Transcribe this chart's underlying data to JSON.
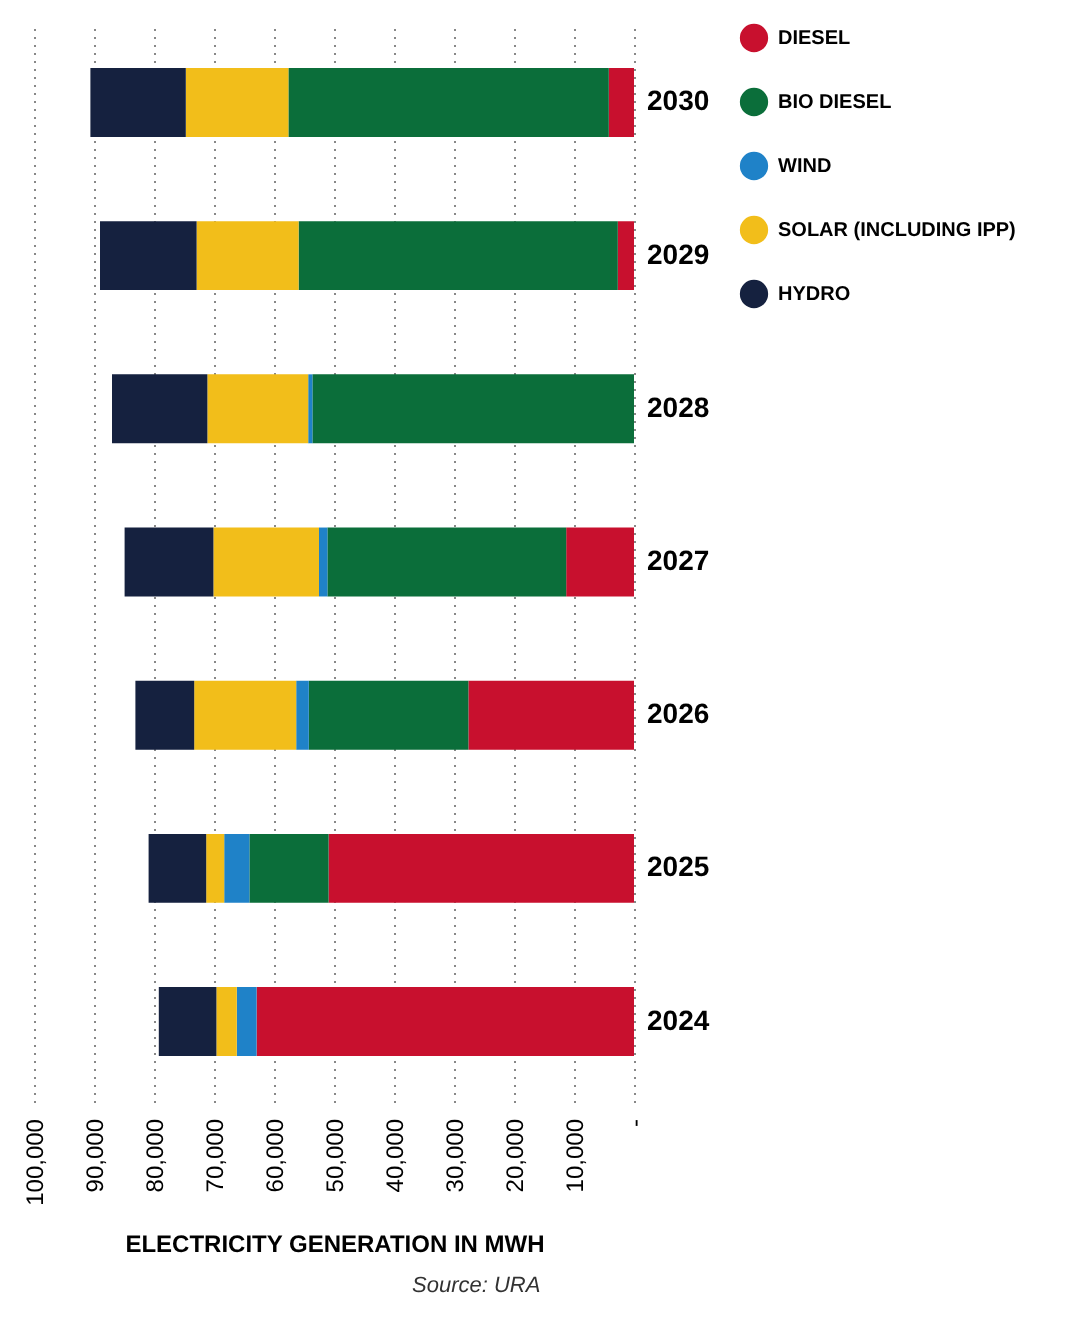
{
  "chart_data": {
    "type": "bar",
    "orientation": "horizontal",
    "stacked": true,
    "categories": [
      "2030",
      "2029",
      "2028",
      "2027",
      "2026",
      "2025",
      "2024"
    ],
    "series": [
      {
        "name": "DIESEL",
        "color": "#c8102e",
        "values": [
          4200,
          2700,
          0,
          11300,
          27600,
          50900,
          62900
        ]
      },
      {
        "name": "BIO DIESEL",
        "color": "#0b6e3a",
        "values": [
          53400,
          53200,
          53600,
          39800,
          26600,
          13200,
          0
        ]
      },
      {
        "name": "WIND",
        "color": "#1f82c8",
        "values": [
          0,
          0,
          700,
          1400,
          2100,
          4200,
          3300
        ]
      },
      {
        "name": "SOLAR (INCLUDING IPP)",
        "color": "#f2be1a",
        "values": [
          17100,
          17000,
          16800,
          17600,
          17000,
          3000,
          3400
        ]
      },
      {
        "name": "HYDRO",
        "color": "#15213f",
        "values": [
          15900,
          16100,
          15900,
          14800,
          9800,
          9600,
          9600
        ]
      }
    ],
    "xlim": [
      100000,
      0
    ],
    "xticks": [
      {
        "value": 0,
        "label": "-"
      },
      {
        "value": 10000,
        "label": "10,000"
      },
      {
        "value": 20000,
        "label": "20,000"
      },
      {
        "value": 30000,
        "label": "30,000"
      },
      {
        "value": 40000,
        "label": "40,000"
      },
      {
        "value": 50000,
        "label": "50,000"
      },
      {
        "value": 60000,
        "label": "60,000"
      },
      {
        "value": 70000,
        "label": "70,000"
      },
      {
        "value": 80000,
        "label": "80,000"
      },
      {
        "value": 90000,
        "label": "90,000"
      },
      {
        "value": 100000,
        "label": "100,000"
      }
    ],
    "xlabel": "ELECTRICITY GENERATION IN MWH",
    "grid": "x",
    "legend": "right",
    "annotations": [
      "Source: URA"
    ]
  }
}
